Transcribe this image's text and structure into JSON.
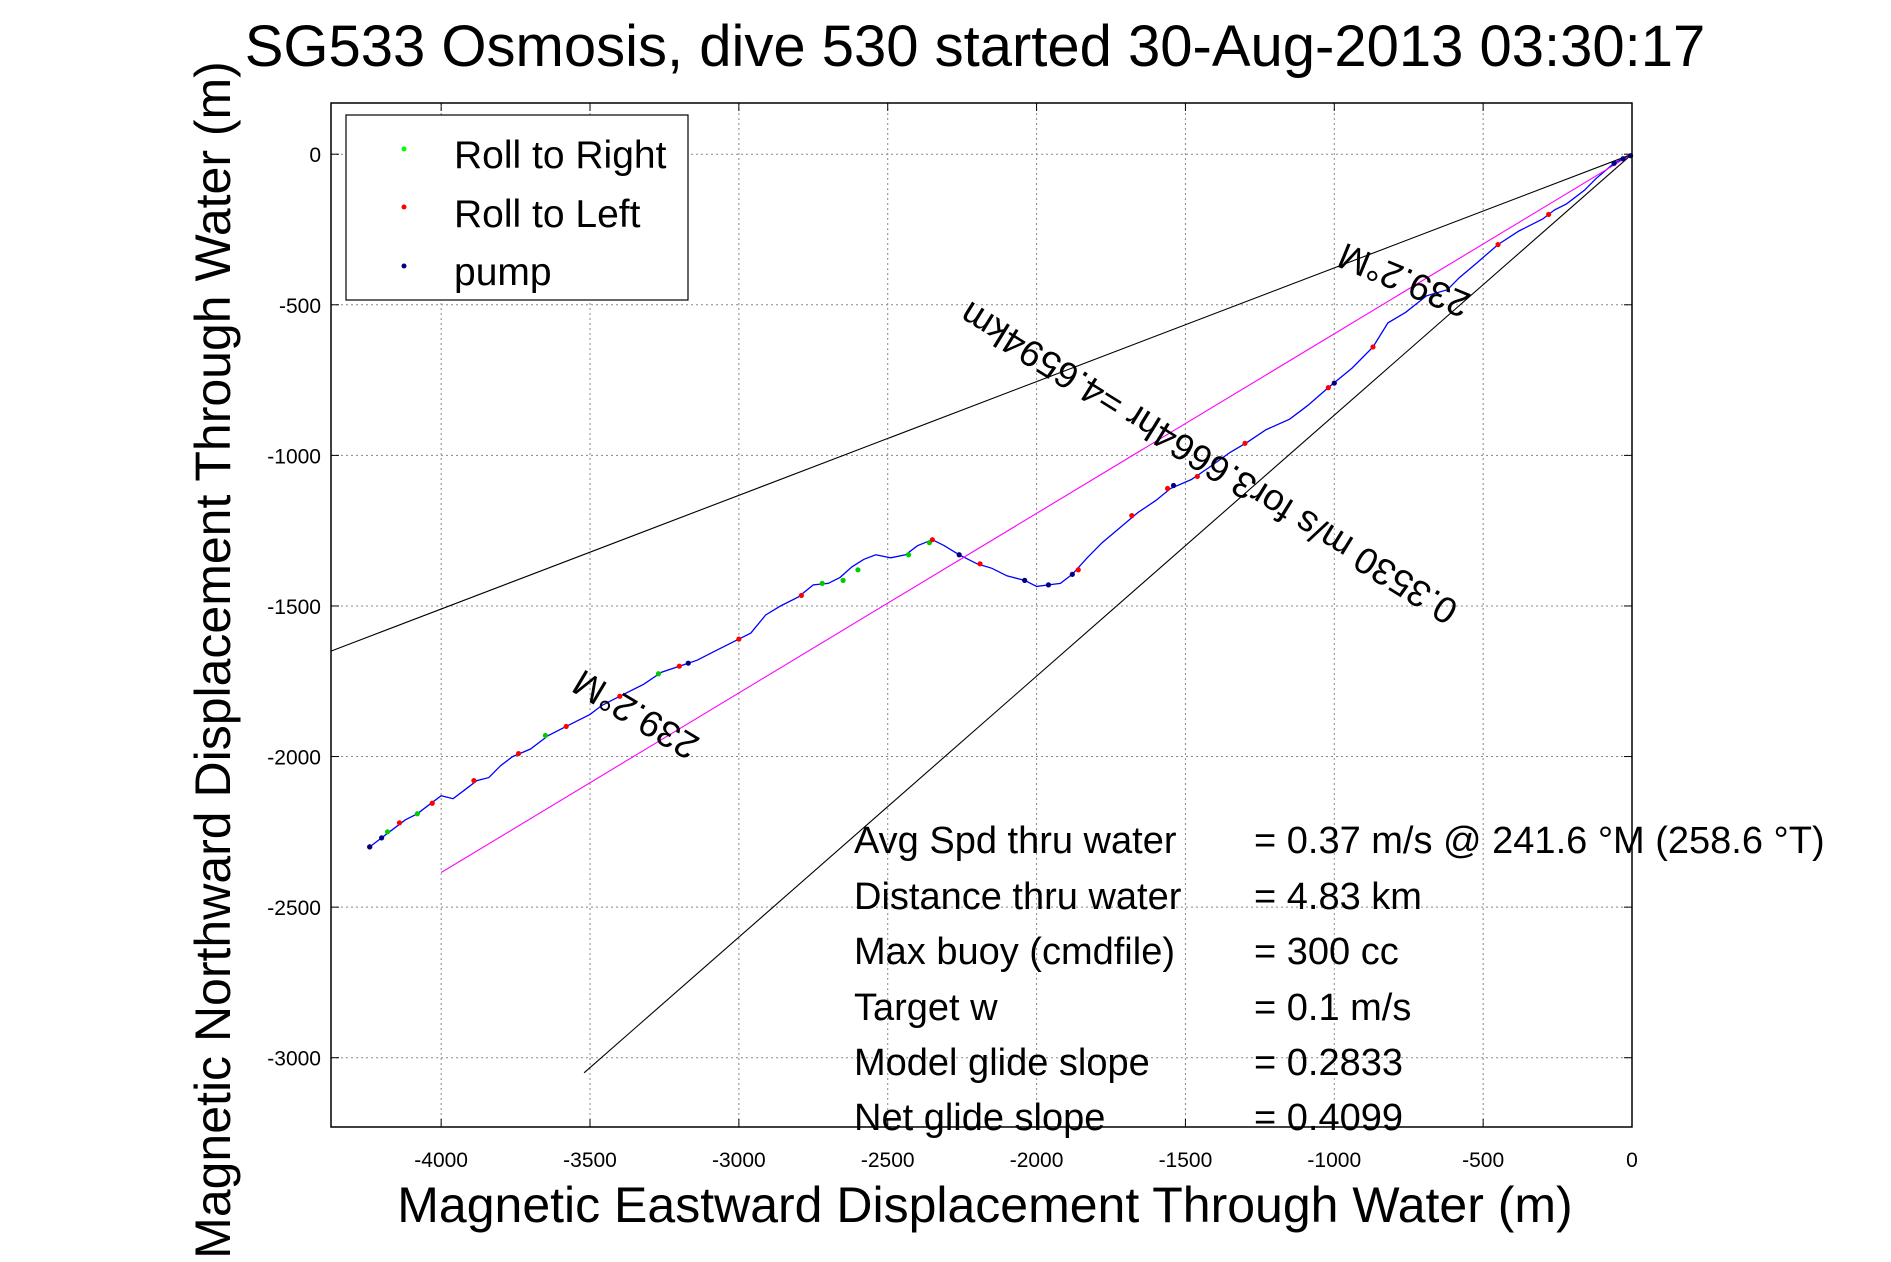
{
  "chart_data": {
    "type": "line",
    "title": "SG533 Osmosis, dive 530 started 30-Aug-2013 03:30:17",
    "xlabel": "Magnetic Eastward Displacement Through Water (m)",
    "ylabel": "Magnetic Northward Displacement Through Water (m)",
    "xlim": [
      -4370,
      0
    ],
    "ylim": [
      -3230,
      170
    ],
    "xticks": [
      -4000,
      -3500,
      -3000,
      -2500,
      -2000,
      -1500,
      -1000,
      -500,
      0
    ],
    "yticks": [
      0,
      -500,
      -1000,
      -1500,
      -2000,
      -2500,
      -3000
    ],
    "grid": true,
    "legend_position": "top-left",
    "legend": [
      {
        "label": "Roll to Right",
        "color": "#00ff00"
      },
      {
        "label": "Roll to Left",
        "color": "#ff0000"
      },
      {
        "label": "pump",
        "color": "#000080"
      }
    ],
    "series": [
      {
        "name": "track",
        "color": "#0000ff",
        "points": [
          [
            0,
            0
          ],
          [
            -60,
            -30
          ],
          [
            -120,
            -80
          ],
          [
            -160,
            -120
          ],
          [
            -220,
            -165
          ],
          [
            -260,
            -185
          ],
          [
            -300,
            -215
          ],
          [
            -380,
            -255
          ],
          [
            -450,
            -300
          ],
          [
            -520,
            -360
          ],
          [
            -580,
            -410
          ],
          [
            -620,
            -450
          ],
          [
            -690,
            -470
          ],
          [
            -760,
            -525
          ],
          [
            -820,
            -560
          ],
          [
            -870,
            -640
          ],
          [
            -940,
            -710
          ],
          [
            -1020,
            -775
          ],
          [
            -1090,
            -835
          ],
          [
            -1150,
            -880
          ],
          [
            -1230,
            -915
          ],
          [
            -1290,
            -955
          ],
          [
            -1350,
            -990
          ],
          [
            -1420,
            -1040
          ],
          [
            -1480,
            -1080
          ],
          [
            -1550,
            -1110
          ],
          [
            -1600,
            -1150
          ],
          [
            -1660,
            -1190
          ],
          [
            -1720,
            -1240
          ],
          [
            -1780,
            -1290
          ],
          [
            -1830,
            -1340
          ],
          [
            -1880,
            -1395
          ],
          [
            -1920,
            -1425
          ],
          [
            -1960,
            -1430
          ],
          [
            -2000,
            -1435
          ],
          [
            -2040,
            -1415
          ],
          [
            -2100,
            -1400
          ],
          [
            -2150,
            -1375
          ],
          [
            -2200,
            -1360
          ],
          [
            -2260,
            -1330
          ],
          [
            -2310,
            -1300
          ],
          [
            -2350,
            -1280
          ],
          [
            -2400,
            -1300
          ],
          [
            -2440,
            -1330
          ],
          [
            -2490,
            -1340
          ],
          [
            -2540,
            -1330
          ],
          [
            -2580,
            -1345
          ],
          [
            -2620,
            -1370
          ],
          [
            -2660,
            -1405
          ],
          [
            -2700,
            -1425
          ],
          [
            -2750,
            -1430
          ],
          [
            -2800,
            -1470
          ],
          [
            -2860,
            -1500
          ],
          [
            -2910,
            -1530
          ],
          [
            -2960,
            -1590
          ],
          [
            -3020,
            -1620
          ],
          [
            -3080,
            -1650
          ],
          [
            -3140,
            -1680
          ],
          [
            -3200,
            -1700
          ],
          [
            -3260,
            -1720
          ],
          [
            -3320,
            -1760
          ],
          [
            -3380,
            -1790
          ],
          [
            -3420,
            -1810
          ],
          [
            -3460,
            -1830
          ],
          [
            -3500,
            -1860
          ],
          [
            -3580,
            -1900
          ],
          [
            -3640,
            -1930
          ],
          [
            -3700,
            -1975
          ],
          [
            -3760,
            -2000
          ],
          [
            -3800,
            -2030
          ],
          [
            -3840,
            -2070
          ],
          [
            -3880,
            -2080
          ],
          [
            -3920,
            -2110
          ],
          [
            -3960,
            -2140
          ],
          [
            -4000,
            -2130
          ],
          [
            -4040,
            -2160
          ],
          [
            -4080,
            -2190
          ],
          [
            -4120,
            -2210
          ],
          [
            -4160,
            -2240
          ],
          [
            -4200,
            -2270
          ],
          [
            -4240,
            -2300
          ]
        ]
      },
      {
        "name": "",
        "color": "#ff00ff",
        "points": [
          [
            0,
            0
          ],
          [
            -4000,
            -2385
          ]
        ]
      },
      {
        "name": "",
        "color": "#000000",
        "points": [
          [
            0,
            0
          ],
          [
            -4370,
            -1650
          ]
        ]
      },
      {
        "name": "",
        "color": "#000000",
        "points": [
          [
            0,
            0
          ],
          [
            -3520,
            -3050
          ]
        ]
      }
    ],
    "markers": {
      "roll_right": [
        [
          -2720,
          -1425
        ],
        [
          -2650,
          -1415
        ],
        [
          -2600,
          -1380
        ],
        [
          -2430,
          -1330
        ],
        [
          -2360,
          -1290
        ],
        [
          -4080,
          -2190
        ],
        [
          -4180,
          -2250
        ],
        [
          -3650,
          -1930
        ],
        [
          -3270,
          -1725
        ]
      ],
      "roll_left": [
        [
          -280,
          -200
        ],
        [
          -450,
          -300
        ],
        [
          -870,
          -640
        ],
        [
          -1020,
          -775
        ],
        [
          -1300,
          -960
        ],
        [
          -1460,
          -1070
        ],
        [
          -1560,
          -1110
        ],
        [
          -1680,
          -1200
        ],
        [
          -1860,
          -1380
        ],
        [
          -2190,
          -1360
        ],
        [
          -2350,
          -1280
        ],
        [
          -2790,
          -1465
        ],
        [
          -3000,
          -1610
        ],
        [
          -3200,
          -1700
        ],
        [
          -3400,
          -1800
        ],
        [
          -3580,
          -1900
        ],
        [
          -3740,
          -1990
        ],
        [
          -3890,
          -2080
        ],
        [
          -4030,
          -2155
        ],
        [
          -4140,
          -2220
        ],
        [
          -4240,
          -2300
        ]
      ],
      "pump": [
        [
          -5,
          -5
        ],
        [
          -30,
          -15
        ],
        [
          -60,
          -30
        ],
        [
          -1000,
          -760
        ],
        [
          -1540,
          -1100
        ],
        [
          -1880,
          -1395
        ],
        [
          -1960,
          -1430
        ],
        [
          -2040,
          -1415
        ],
        [
          -2260,
          -1330
        ],
        [
          -3170,
          -1690
        ],
        [
          -4200,
          -2270
        ],
        [
          -4240,
          -2300
        ]
      ]
    },
    "annotations": [
      {
        "text": "239.2°M",
        "near": [
          -3325,
          -1825
        ]
      },
      {
        "text": "0.3530 m/s for3.6664hr =4.6594km",
        "near": [
          -1400,
          -990
        ]
      },
      {
        "text": "239.2°M",
        "near": [
          -750,
          -380
        ]
      }
    ],
    "stats": [
      {
        "label": "Avg Spd thru water",
        "value": "=  0.37 m/s @ 241.6 °M (258.6 °T)"
      },
      {
        "label": "Distance thru water",
        "value": "=  4.83 km"
      },
      {
        "label": "Max buoy (cmdfile)",
        "value": "= 300 cc"
      },
      {
        "label": "Target w",
        "value": "= 0.1 m/s"
      },
      {
        "label": "Model glide slope",
        "value": "= 0.2833"
      },
      {
        "label": "Net glide slope",
        "value": "= 0.4099"
      }
    ]
  }
}
